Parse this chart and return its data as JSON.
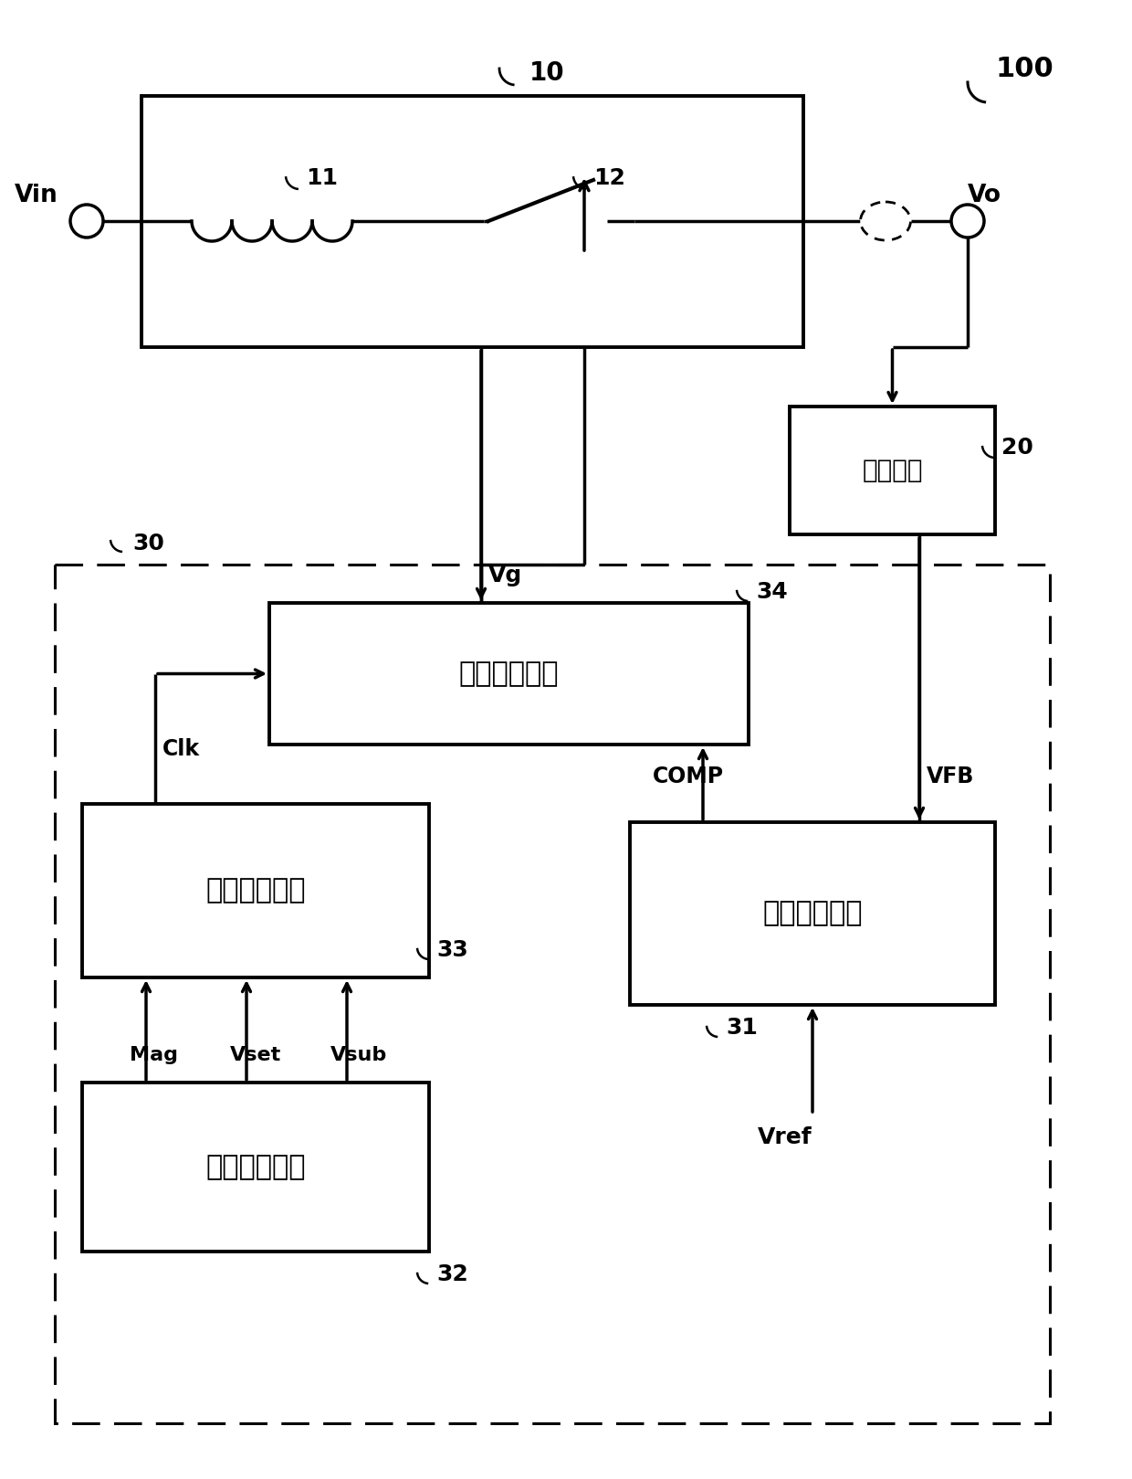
{
  "bg_color": "#ffffff",
  "line_color": "#000000",
  "fig_width": 12.4,
  "fig_height": 16.19,
  "label_100": "100",
  "label_10": "10",
  "label_11": "11",
  "label_12": "12",
  "label_20": "20",
  "label_30": "30",
  "label_31": "31",
  "label_32": "32",
  "label_33": "33",
  "label_34": "34",
  "label_Vin": "Vin",
  "label_Vo": "Vo",
  "label_Vg": "Vg",
  "label_fankui": "反馈电路",
  "label_kaiguan": "开关控制单元",
  "label_pinlv": "频率控制单元",
  "label_wucha": "误差放大单元",
  "label_cichang": "磁场检测单元",
  "label_Clk": "Clk",
  "label_COMP": "COMP",
  "label_VFB": "VFB",
  "label_Mag": "Mag",
  "label_Vset": "Vset",
  "label_Vsub": "Vsub",
  "label_Vref": "Vref"
}
